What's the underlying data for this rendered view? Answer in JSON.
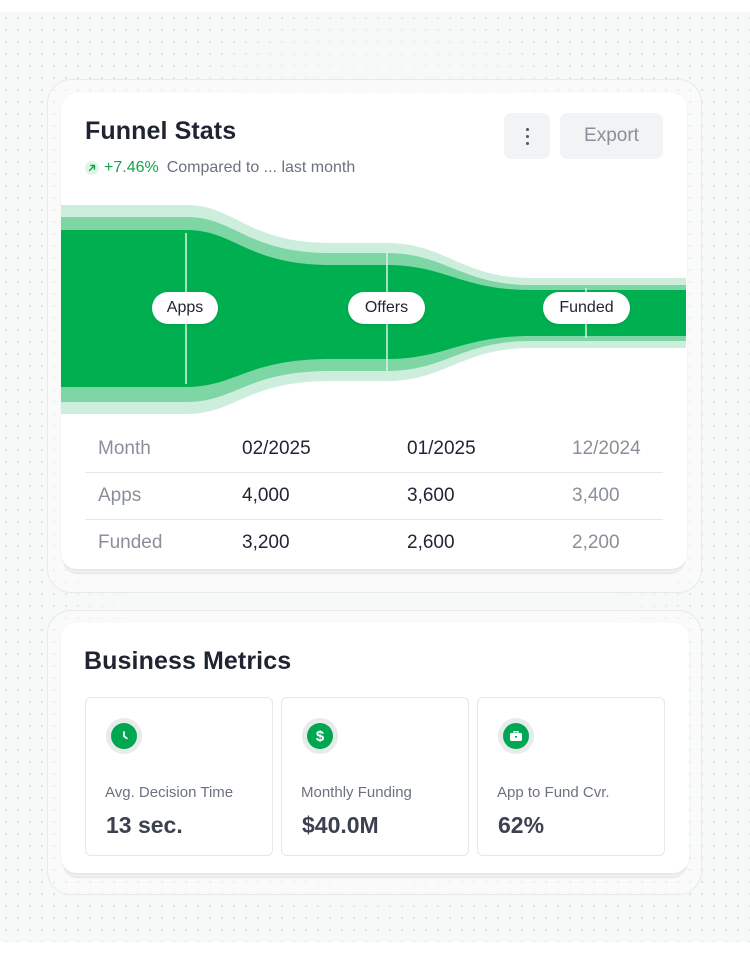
{
  "funnel_card": {
    "title": "Funnel Stats",
    "trend": {
      "value": "+7.46%",
      "text": "Compared to ... last month",
      "icon": "arrow-up-right-icon"
    },
    "menu_icon": "more-vertical-icon",
    "export_label": "Export",
    "stages": [
      "Apps",
      "Offers",
      "Funded"
    ],
    "colors": {
      "accent": "#00b050",
      "accent_mid": "#7fd6a5",
      "accent_light": "#cdeedd"
    },
    "table": {
      "header": [
        "Month",
        "02/2025",
        "01/2025",
        "12/2024"
      ],
      "rows": [
        [
          "Apps",
          "4,000",
          "3,600",
          "3,400"
        ],
        [
          "Funded",
          "3,200",
          "2,600",
          "2,200"
        ]
      ]
    }
  },
  "metrics_card": {
    "title": "Business Metrics",
    "metrics": [
      {
        "icon": "clock-icon",
        "label": "Avg. Decision Time",
        "value": "13 sec."
      },
      {
        "icon": "dollar-icon",
        "label": "Monthly Funding",
        "value": "$40.0M"
      },
      {
        "icon": "briefcase-icon",
        "label": "App to Fund Cvr.",
        "value": "62%"
      }
    ]
  }
}
